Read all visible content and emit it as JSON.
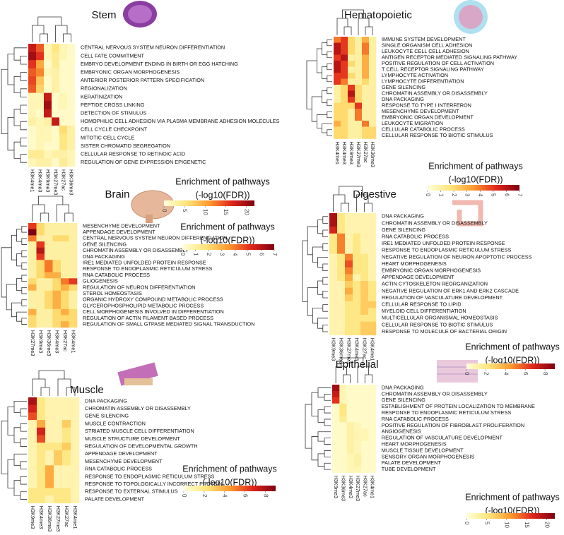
{
  "chart_data": [
    {
      "type": "heatmap",
      "title": "Stem",
      "columns": [
        "H3K4me1",
        "H3K4me3",
        "H3K9me3",
        "H3K27me3",
        "H3K27ac",
        "H3K36me3"
      ],
      "rows": [
        "CENTRAL NERVOUS SYSTEM NEURON DIFFERENTIATION",
        "CELL FATE COMMITMENT",
        "EMBRYO DEVELOPMENT ENDING IN BIRTH OR EGG HATCHING",
        "EMBRYONIC ORGAN MORPHOGENESIS",
        "ANTERIOR POSTERIOR PATTERN SPECIFICATION",
        "REGIONALIZATION",
        "KERATINIZATION",
        "PEPTIDE CROSS LINKING",
        "DETECTION OF STIMULUS",
        "HOMOPHILIC CELL ADHESION VIA PLASMA MEMBRANE ADHESION MOLECULES",
        "CELL CYCLE CHECKPOINT",
        "MITOTIC CELL CYCLE",
        "SISTER CHROMATID SEGREGATION",
        "CELLULAR RESPONSE TO RETINOIC ACID",
        "REGULATION OF GENE EXPRESSION EPIGENETIC"
      ],
      "values": [
        [
          18,
          14,
          2,
          5,
          2,
          1
        ],
        [
          20,
          16,
          2,
          4,
          2,
          1
        ],
        [
          16,
          10,
          1,
          4,
          1,
          1
        ],
        [
          14,
          12,
          2,
          3,
          1,
          1
        ],
        [
          15,
          8,
          1,
          3,
          1,
          1
        ],
        [
          14,
          7,
          1,
          3,
          1,
          1
        ],
        [
          2,
          2,
          18,
          1,
          2,
          1
        ],
        [
          2,
          2,
          20,
          1,
          2,
          1
        ],
        [
          2,
          1,
          18,
          1,
          1,
          1
        ],
        [
          3,
          2,
          3,
          18,
          1,
          1
        ],
        [
          1,
          2,
          2,
          1,
          6,
          3
        ],
        [
          1,
          2,
          2,
          1,
          5,
          3
        ],
        [
          1,
          2,
          1,
          1,
          5,
          3
        ],
        [
          4,
          4,
          2,
          3,
          3,
          2
        ],
        [
          2,
          3,
          3,
          1,
          4,
          2
        ]
      ],
      "legend_title": [
        "Enrichment of pathways",
        "(-log10(FDR))"
      ],
      "clim": [
        0,
        22
      ],
      "cticks": [
        0,
        5,
        10,
        15,
        20
      ],
      "colormap": [
        "#ffffd9",
        "#fee57a",
        "#fd9a2f",
        "#e0261b",
        "#7f0010"
      ]
    },
    {
      "type": "heatmap",
      "title": "Hematopoietic",
      "columns": [
        "H3K4me1",
        "H3K4me3",
        "H3K9me3",
        "H3K27me3",
        "H3K27ac",
        "H3K36me3"
      ],
      "rows": [
        "IMMUNE SYSTEM DEVELOPMENT",
        "SINGLE ORGANISM CELL ADHESION",
        "LEUKOCYTE CELL CELL ADHESION",
        "ANTIGEN RECEPTOR MEDIATED SIGNALING PATHWAY",
        "POSITIVE REGULATION OF CELL ACTIVATION",
        "T CELL RECEPTOR SIGNALING PATHWAY",
        "LYMPHOCYTE ACTIVATION",
        "LYMPHOCYTE DIFFERENTIATION",
        "GENE SILENCING",
        "CHROMATIN ASSEMBLY OR DISASSEMBLY",
        "DNA PACKAGING",
        "RESPONSE TO TYPE I INTERFERON",
        "MESENCHYME DEVELOPMENT",
        "EMBRYONIC ORGAN DEVELOPMENT",
        "LEUKOCYTE MIGRATION",
        "CELLULAR CATABOLIC PROCESS",
        "CELLULAR RESPONSE TO BIOTIC STIMULUS"
      ],
      "values": [
        [
          4,
          5,
          2,
          1,
          3,
          1
        ],
        [
          6,
          5,
          2,
          1,
          4,
          1
        ],
        [
          6,
          5,
          2,
          1,
          4,
          1
        ],
        [
          5,
          6,
          1,
          1,
          3,
          1
        ],
        [
          6,
          5,
          2,
          1,
          3,
          1
        ],
        [
          6,
          5,
          1,
          1,
          3,
          1
        ],
        [
          5,
          5,
          2,
          1,
          3,
          1
        ],
        [
          5,
          4,
          1,
          1,
          2,
          1
        ],
        [
          1,
          2,
          5,
          2,
          1,
          1
        ],
        [
          1,
          2,
          6,
          2,
          1,
          1
        ],
        [
          1,
          2,
          5,
          2,
          1,
          1
        ],
        [
          2,
          2,
          2,
          5,
          1,
          1
        ],
        [
          2,
          2,
          1,
          4,
          1,
          1
        ],
        [
          2,
          2,
          1,
          4,
          1,
          1
        ],
        [
          3,
          2,
          1,
          1,
          4,
          1
        ],
        [
          2,
          2,
          1,
          1,
          2,
          2
        ],
        [
          2,
          2,
          1,
          1,
          2,
          2
        ]
      ],
      "legend_title": [
        "Enrichment of pathways",
        "(-log10(FDR))"
      ],
      "clim": [
        0,
        7
      ],
      "cticks": [
        0,
        1,
        2,
        3,
        4,
        5,
        6,
        7
      ],
      "colormap": [
        "#ffffd9",
        "#fee57a",
        "#fd9a2f",
        "#e0261b",
        "#7f0010"
      ]
    },
    {
      "type": "heatmap",
      "title": "Brain",
      "columns": [
        "H3K27me3",
        "H3K9me3",
        "H3K36me3",
        "H3K4me3",
        "H3K27ac",
        "H3K4me1"
      ],
      "rows": [
        "MESENCHYME DEVELOPMENT",
        "APPENDAGE DEVELOPMENT",
        "CENTRAL NERVOUS SYSTEM NEURON DIFFERENTIATION",
        "GENE SILENCING",
        "CHROMATIN ASSEMBLY OR DISASSEMBLY",
        "DNA PACKAGING",
        "IRE1 MEDIATED UNFOLDED PROTEIN RESPONSE",
        "RESPONSE TO ENDOPLASMIC RETICULUM STRESS",
        "RNA CATABOLIC PROCESS",
        "GLIOGENESIS",
        "REGULATION OF NEURON DIFFERENTIATION",
        "STEROL HOMEOSTASIS",
        "ORGANIC HYDROXY COMPOUND METABOLIC PROCESS",
        "GLYCEROPHOSPHOLIPID METABOLIC PROCESS",
        "CELL MORPHOGENESIS INVOLVED IN DIFFERENTIATION",
        "REGULATION OF ACTIN FILAMENT BASED PROCESS",
        "REGULATION OF SMALL GTPASE MEDIATED SIGNAL TRANSDUCTION"
      ],
      "values": [
        [
          5,
          2,
          1,
          1,
          1,
          1
        ],
        [
          7,
          2,
          1,
          1,
          1,
          1
        ],
        [
          4,
          1,
          1,
          2,
          2,
          1
        ],
        [
          1,
          5,
          1,
          1,
          1,
          1
        ],
        [
          1,
          6,
          1,
          1,
          1,
          1
        ],
        [
          1,
          5,
          1,
          1,
          1,
          1
        ],
        [
          1,
          2,
          4,
          2,
          1,
          1
        ],
        [
          1,
          2,
          4,
          2,
          1,
          1
        ],
        [
          1,
          2,
          3,
          3,
          1,
          1
        ],
        [
          2,
          1,
          1,
          2,
          4,
          5
        ],
        [
          3,
          1,
          1,
          2,
          3,
          2
        ],
        [
          1,
          1,
          2,
          3,
          2,
          1
        ],
        [
          1,
          1,
          2,
          3,
          2,
          1
        ],
        [
          1,
          1,
          2,
          3,
          2,
          1
        ],
        [
          3,
          1,
          1,
          2,
          3,
          2
        ],
        [
          2,
          1,
          1,
          2,
          2,
          2
        ],
        [
          2,
          1,
          1,
          2,
          3,
          2
        ]
      ],
      "legend_title": [
        "Enrichment of pathways",
        "(-log10(FDR))"
      ],
      "clim": [
        0,
        7
      ],
      "cticks": [
        0,
        1,
        2,
        3,
        4,
        5,
        6,
        7
      ],
      "colormap": [
        "#ffffd9",
        "#fee57a",
        "#fd9a2f",
        "#e0261b",
        "#7f0010"
      ]
    },
    {
      "type": "heatmap",
      "title": "Digestive",
      "columns": [
        "H3K9me3",
        "H3K36me3",
        "H3K27me3",
        "H3K4me3",
        "H3K27ac",
        "H3K4me1"
      ],
      "rows": [
        "DNA PACKAGING",
        "CHROMATIN ASSEMBLY OR DISASSEMBLY",
        "GENE SILENCING",
        "RNA CATABOLIC PROCESS",
        "IRE1 MEDIATED UNFOLDED PROTEIN RESPONSE",
        "RESPONSE TO ENDOPLASMIC RETICULUM STRESS",
        "NEGATIVE REGULATION OF NEURON APOPTOTIC PROCESS",
        "HEART MORPHOGENESIS",
        "EMBRYONIC ORGAN MORPHOGENESIS",
        "APPENDAGE DEVELOPMENT",
        "ACTIN CYTOSKELETON REORGANIZATION",
        "NEGATIVE REGULATION OF ERK1 AND ERK2 CASCADE",
        "REGULATION OF VASCULATURE DEVELOPMENT",
        "CELLULAR RESPONSE TO LIPID",
        "MYELOID CELL DIFFERENTIATION",
        "MULTICELLULAR ORGANISMAL HOMEOSTASIS",
        "CELLULAR RESPONSE TO BIOTIC STIMULUS",
        "RESPONSE TO MOLECULE OF BACTERIAL ORIGIN"
      ],
      "values": [
        [
          8,
          2,
          1,
          1,
          1,
          1
        ],
        [
          8,
          2,
          1,
          1,
          1,
          1
        ],
        [
          7,
          2,
          1,
          1,
          1,
          1
        ],
        [
          2,
          5,
          1,
          2,
          1,
          1
        ],
        [
          2,
          5,
          1,
          2,
          1,
          1
        ],
        [
          2,
          5,
          1,
          2,
          1,
          1
        ],
        [
          1,
          2,
          5,
          2,
          2,
          1
        ],
        [
          1,
          2,
          6,
          2,
          2,
          1
        ],
        [
          1,
          2,
          5,
          2,
          2,
          1
        ],
        [
          1,
          2,
          4,
          1,
          2,
          1
        ],
        [
          1,
          1,
          3,
          2,
          3,
          2
        ],
        [
          1,
          1,
          4,
          2,
          3,
          2
        ],
        [
          1,
          1,
          3,
          2,
          3,
          2
        ],
        [
          1,
          1,
          2,
          2,
          3,
          3
        ],
        [
          1,
          1,
          2,
          2,
          3,
          2
        ],
        [
          1,
          1,
          2,
          2,
          2,
          2
        ],
        [
          1,
          1,
          2,
          2,
          3,
          3
        ],
        [
          1,
          1,
          2,
          2,
          3,
          3
        ]
      ],
      "legend_title": [
        "Enrichment of pathways",
        "(-log10(FDR))"
      ],
      "clim": [
        0,
        9
      ],
      "cticks": [
        0,
        2,
        4,
        6,
        8
      ],
      "colormap": [
        "#ffffd9",
        "#fee57a",
        "#fd9a2f",
        "#e0261b",
        "#7f0010"
      ]
    },
    {
      "type": "heatmap",
      "title": "Muscle",
      "columns": [
        "H3K9me3",
        "H3K4me3",
        "H3K36me3",
        "H3K27me3",
        "H3K27ac",
        "H3K4me1"
      ],
      "rows": [
        "DNA PACKAGING",
        "CHROMATIN ASSEMBLY OR DISASSEMBLY",
        "GENE SILENCING",
        "MUSCLE CONTRACTION",
        "STRIATED MUSCLE CELL DIFFERENTIATION",
        "MUSCLE STRUCTURE DEVELOPMENT",
        "REGULATION OF DEVELOPMENTAL GROWTH",
        "APPENDAGE DEVELOPMENT",
        "MESENCHYME DEVELOPMENT",
        "RNA CATABOLIC PROCESS",
        "RESPONSE TO ENDOPLASMIC RETICULUM STRESS",
        "RESPONSE TO TOPOLOGICALLY INCORRECT PROTEIN",
        "RESPONSE TO EXTERNAL STIMULUS",
        "PALATE DEVELOPMENT"
      ],
      "values": [
        [
          8,
          2,
          1,
          1,
          1,
          1
        ],
        [
          7,
          2,
          1,
          1,
          1,
          1
        ],
        [
          6,
          2,
          1,
          1,
          1,
          1
        ],
        [
          1,
          4,
          1,
          1,
          3,
          1
        ],
        [
          1,
          7,
          1,
          1,
          2,
          1
        ],
        [
          1,
          6,
          1,
          1,
          2,
          1
        ],
        [
          1,
          2,
          2,
          2,
          3,
          1
        ],
        [
          1,
          2,
          1,
          3,
          2,
          1
        ],
        [
          1,
          2,
          1,
          3,
          2,
          1
        ],
        [
          1,
          2,
          4,
          1,
          1,
          1
        ],
        [
          1,
          2,
          4,
          1,
          1,
          1
        ],
        [
          1,
          2,
          4,
          1,
          1,
          1
        ],
        [
          2,
          2,
          2,
          2,
          2,
          1
        ],
        [
          2,
          2,
          1,
          2,
          2,
          1
        ]
      ],
      "legend_title": [
        "Enrichment of pathways",
        "(-log10(FDR))"
      ],
      "clim": [
        0,
        9
      ],
      "cticks": [
        0,
        2,
        4,
        6,
        8
      ],
      "colormap": [
        "#ffffd9",
        "#fee57a",
        "#fd9a2f",
        "#e0261b",
        "#7f0010"
      ]
    },
    {
      "type": "heatmap",
      "title": "Epithelial",
      "columns": [
        "H3K9me3",
        "H3K36me3",
        "H3K4me3",
        "H3K27me3",
        "H3K27ac",
        "H3K4me1"
      ],
      "rows": [
        "DNA PACKAGING",
        "CHROMATIN ASSEMBLY OR DISASSEMBLY",
        "GENE SILENCING",
        "ESTABLISHMENT OF PROTEIN LOCALIZATION TO MEMBRANE",
        "RESPONSE TO ENDOPLASMIC RETICULUM STRESS",
        "RNA CATABOLIC PROCESS",
        "POSITIVE REGULATION OF FIBROBLAST PROLIFERATION",
        "ANGIOGENESIS",
        "REGULATION OF VASCULATURE DEVELOPMENT",
        "HEART MORPHOGENESIS",
        "MUSCLE TISSUE DEVELOPMENT",
        "SENSORY ORGAN MORPHOGENESIS",
        "PALATE DEVELOPMENT",
        "TUBE DEVELOPMENT"
      ],
      "values": [
        [
          20,
          2,
          1,
          1,
          1,
          1
        ],
        [
          18,
          2,
          1,
          1,
          1,
          1
        ],
        [
          16,
          2,
          1,
          1,
          1,
          1
        ],
        [
          1,
          5,
          1,
          1,
          1,
          1
        ],
        [
          1,
          5,
          1,
          1,
          1,
          1
        ],
        [
          1,
          4,
          1,
          1,
          1,
          1
        ],
        [
          1,
          1,
          3,
          2,
          1,
          1
        ],
        [
          1,
          1,
          3,
          2,
          2,
          1
        ],
        [
          1,
          1,
          3,
          2,
          2,
          1
        ],
        [
          1,
          1,
          3,
          2,
          1,
          1
        ],
        [
          1,
          1,
          3,
          2,
          1,
          1
        ],
        [
          1,
          1,
          2,
          3,
          1,
          1
        ],
        [
          1,
          1,
          2,
          3,
          1,
          1
        ],
        [
          1,
          1,
          2,
          2,
          1,
          1
        ]
      ],
      "legend_title": [
        "Enrichment of pathways",
        "(-log10(FDR))"
      ],
      "clim": [
        0,
        22
      ],
      "cticks": [
        0,
        5,
        10,
        15,
        20
      ],
      "colormap": [
        "#ffffd9",
        "#fee57a",
        "#fd9a2f",
        "#e0261b",
        "#7f0010"
      ]
    }
  ]
}
